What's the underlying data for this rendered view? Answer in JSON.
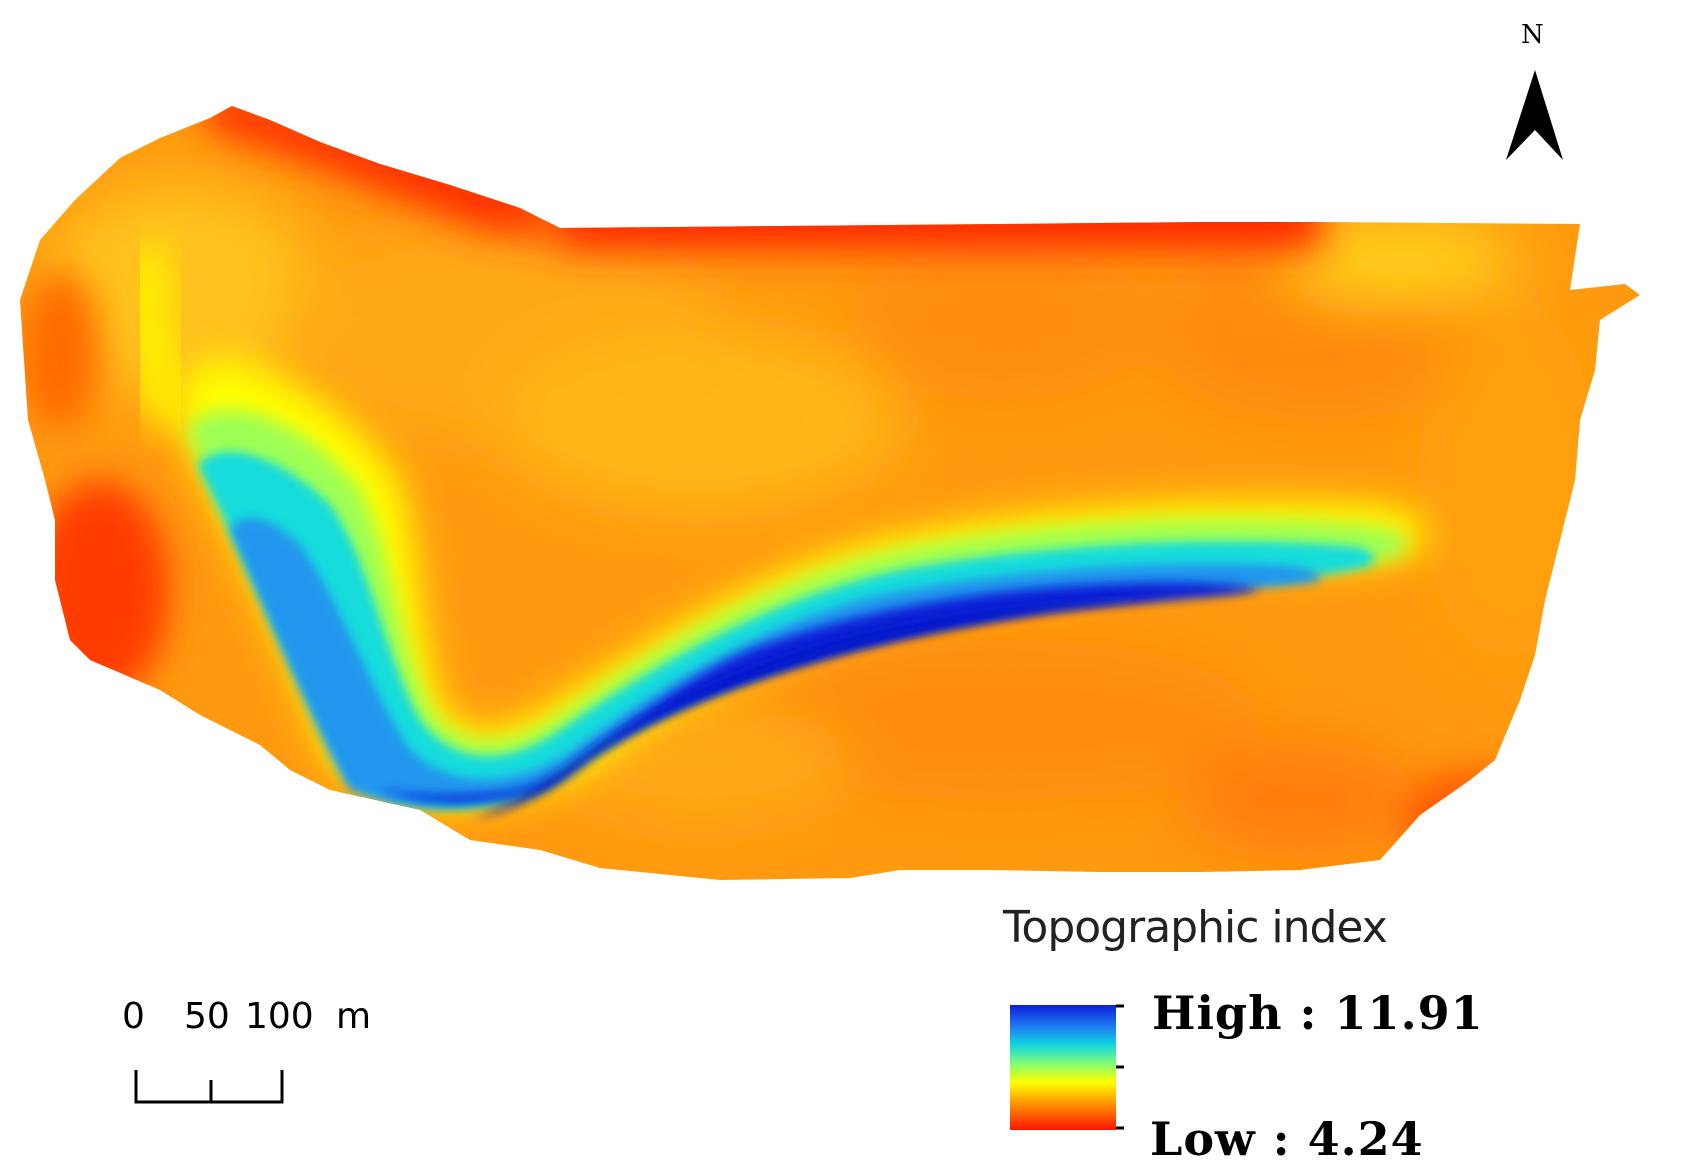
{
  "legend": {
    "title": "Topographic index",
    "high_label": "High : 11.91",
    "low_label": "Low : 4.24",
    "colors": [
      "#0a1fd6",
      "#1e7cf0",
      "#12d6e0",
      "#7dff7a",
      "#ffff00",
      "#ffb000",
      "#ff7800",
      "#ff1e00"
    ]
  },
  "scale_bar": {
    "ticks": [
      "0",
      "50",
      "100"
    ],
    "unit": "m"
  },
  "north_arrow": {
    "letter": "N",
    "icon": "north-arrow-icon"
  }
}
